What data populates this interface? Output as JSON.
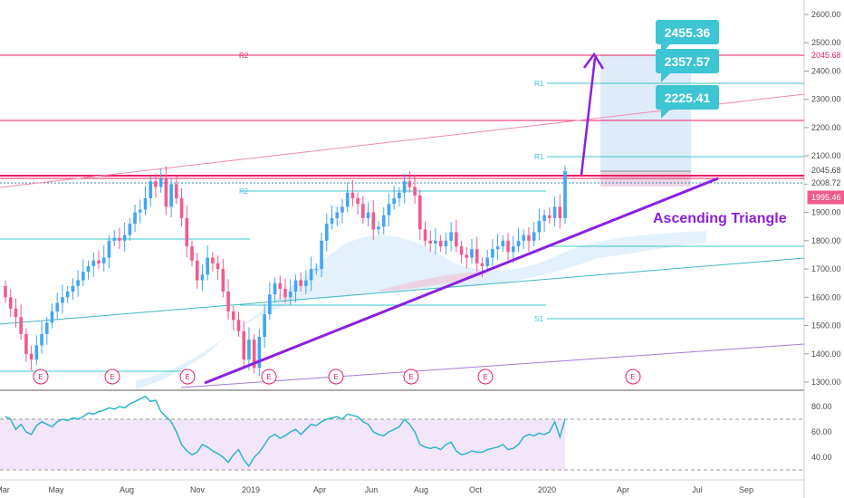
{
  "chart_data": [
    {
      "type": "candlestick",
      "title": "",
      "x_labels": [
        "Mar",
        "May",
        "Aug",
        "Nov",
        "2019",
        "Apr",
        "Jun",
        "Aug",
        "Oct",
        "2020",
        "Apr",
        "Jul",
        "Sep"
      ],
      "y_ticks": [
        1300.0,
        1400.0,
        1500.0,
        1600.0,
        1700.0,
        1800.0,
        1900.0,
        2000.0,
        2100.0,
        2200.0,
        2300.0,
        2400.0,
        2500.0,
        2600.0
      ],
      "ylim": [
        1270,
        2660
      ],
      "closes": [
        1600,
        1560,
        1530,
        1470,
        1400,
        1380,
        1430,
        1470,
        1510,
        1550,
        1580,
        1600,
        1620,
        1640,
        1660,
        1690,
        1710,
        1730,
        1720,
        1740,
        1800,
        1810,
        1800,
        1820,
        1860,
        1900,
        1910,
        1950,
        2010,
        1990,
        2020,
        1920,
        2000,
        1950,
        1880,
        1780,
        1730,
        1660,
        1680,
        1740,
        1720,
        1700,
        1620,
        1550,
        1520,
        1480,
        1380,
        1450,
        1350,
        1460,
        1540,
        1610,
        1650,
        1630,
        1600,
        1620,
        1660,
        1640,
        1660,
        1700,
        1700,
        1800,
        1860,
        1880,
        1900,
        1920,
        1970,
        1950,
        1930,
        1880,
        1900,
        1840,
        1850,
        1890,
        1930,
        1950,
        1970,
        2010,
        1990,
        1960,
        1840,
        1800,
        1790,
        1800,
        1780,
        1800,
        1830,
        1780,
        1750,
        1740,
        1770,
        1720,
        1710,
        1740,
        1770,
        1780,
        1800,
        1760,
        1780,
        1800,
        1820,
        1800,
        1830,
        1870,
        1890,
        1880,
        1920,
        1880,
        2045.68
      ],
      "labeled_prices": [
        2455.36,
        2357.57,
        2225.41,
        2045.68,
        2008.72,
        1995.46
      ],
      "pivot_labels": [
        "R2",
        "R1",
        "R1",
        "R2",
        "S1"
      ],
      "earnings_marker": "E",
      "annotation": "Ascending Triangle",
      "rsi_ticks": [
        80.0,
        60.0,
        40.0
      ],
      "rsi": [
        72,
        70,
        62,
        66,
        60,
        58,
        65,
        68,
        66,
        64,
        68,
        70,
        69,
        71,
        70,
        72,
        75,
        74,
        76,
        77,
        79,
        78,
        80,
        79,
        82,
        84,
        86,
        88,
        84,
        85,
        76,
        72,
        68,
        60,
        50,
        45,
        42,
        44,
        50,
        48,
        45,
        43,
        40,
        36,
        42,
        46,
        38,
        33,
        40,
        44,
        50,
        56,
        58,
        55,
        57,
        60,
        62,
        58,
        62,
        66,
        65,
        68,
        70,
        71,
        72,
        70,
        74,
        73,
        72,
        68,
        66,
        60,
        58,
        57,
        60,
        62,
        64,
        70,
        66,
        60,
        50,
        48,
        47,
        48,
        46,
        50,
        52,
        45,
        42,
        43,
        45,
        44,
        44,
        46,
        47,
        48,
        50,
        46,
        47,
        50,
        56,
        58,
        57,
        59,
        58,
        60,
        68,
        56,
        70
      ],
      "colors": {
        "up": "#42a5f5",
        "down": "#ef5b8f",
        "accent": "#8b1fe0",
        "badge": "#3cc5d2",
        "resistance": "#e91e63",
        "rsi": "#2bb5c8"
      }
    }
  ]
}
